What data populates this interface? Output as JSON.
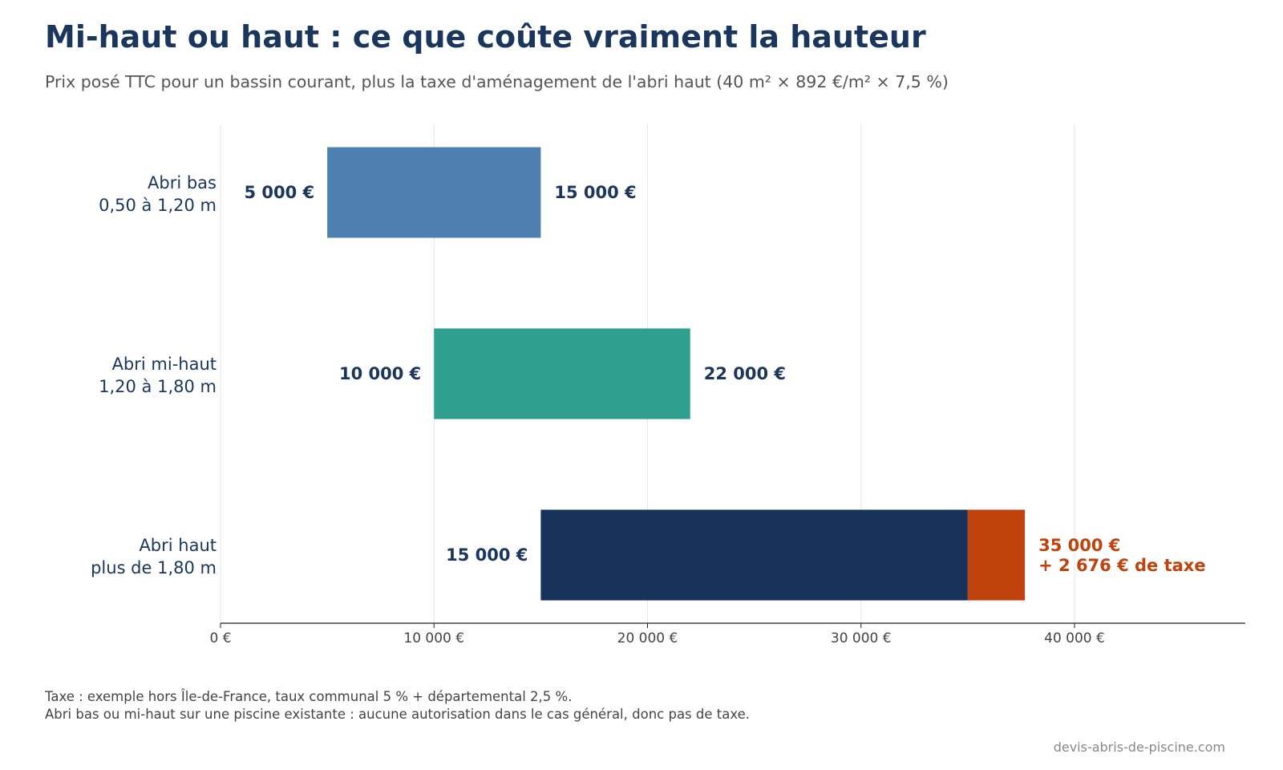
{
  "title": "Mi-haut ou haut : ce que coûte vraiment la hauteur",
  "subtitle": "Prix posé TTC pour un bassin courant, plus la taxe d'aménagement de l'abri haut (40 m² × 892 €/m² × 7,5 %)",
  "notes": [
    "Taxe : exemple hors Île-de-France, taux communal 5 % + départemental 2,5 %.",
    "Abri bas ou mi-haut sur une piscine existante : aucune autorisation dans le cas général, donc pas de taxe."
  ],
  "source": "devis-abris-de-piscine.com",
  "chart_data": {
    "type": "bar",
    "orientation": "horizontal",
    "xlim": [
      0,
      48000
    ],
    "grid": true,
    "ticks": [
      {
        "value": 0,
        "label": "0 €"
      },
      {
        "value": 10000,
        "label": "10 000 €"
      },
      {
        "value": 20000,
        "label": "20 000 €"
      },
      {
        "value": 30000,
        "label": "30 000 €"
      },
      {
        "value": 40000,
        "label": "40 000 €"
      }
    ],
    "categories": [
      {
        "line1": "Abri bas",
        "line2": "0,50 à 1,20 m",
        "min": 5000,
        "max": 15000,
        "tax": 0,
        "color": "#4f7fb0",
        "min_label": "5 000 €",
        "max_label": "15 000 €"
      },
      {
        "line1": "Abri mi-haut",
        "line2": "1,20 à 1,80 m",
        "min": 10000,
        "max": 22000,
        "tax": 0,
        "color": "#2fa08f",
        "min_label": "10 000 €",
        "max_label": "22 000 €"
      },
      {
        "line1": "Abri haut",
        "line2": "plus de 1,80 m",
        "min": 15000,
        "max": 35000,
        "tax": 2676,
        "color": "#17335c",
        "tax_color": "#c0420c",
        "min_label": "15 000 €",
        "max_label": "35 000 €",
        "tax_label": "+ 2 676 € de taxe"
      }
    ]
  }
}
